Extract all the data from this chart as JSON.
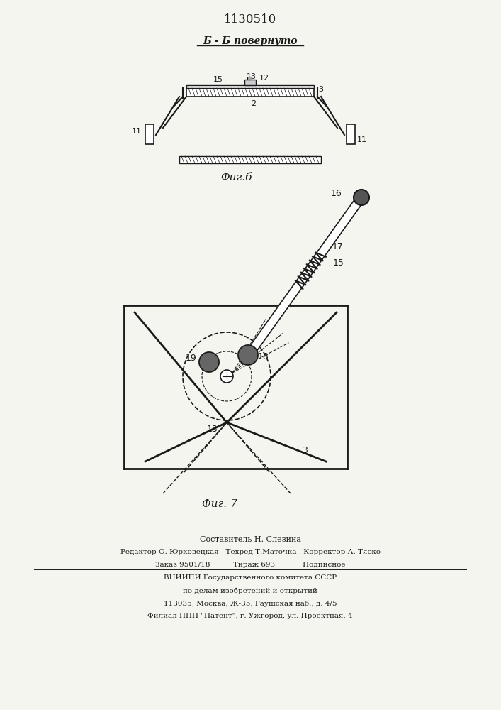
{
  "patent_number": "1130510",
  "fig6_label": "Фиг.б",
  "fig7_label": "Фиг. 7",
  "section_label": "Б - Б повернуто",
  "bg_color": "#f5f5f0",
  "line_color": "#1a1a1a",
  "footer_lines": [
    "Составитель Н. Слезина",
    "Редактор О. Юрковецкая   Техред Т.Маточка   Корректор А. Тяско",
    "Заказ 9501/18          Тираж 693            Подписное",
    "ВНИИПИ Государственного комитета СССР",
    "по делам изобретений и открытий",
    "113035, Москва, Ж-35, Раушская наб., д. 4/5",
    "Филиал ППП \"Патент\", г. Ужгород, ул. Проектная, 4"
  ]
}
